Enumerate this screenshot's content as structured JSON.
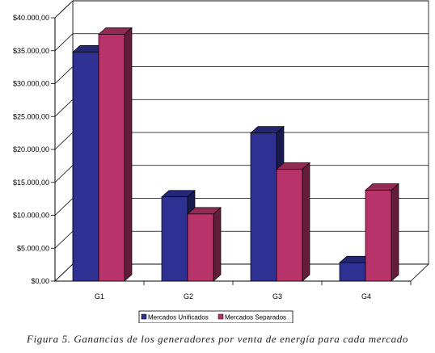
{
  "chart_data": {
    "type": "bar",
    "categories": [
      "G1",
      "G2",
      "G3",
      "G4"
    ],
    "series": [
      {
        "name": "Mercados Unificados",
        "color": "#2e3192",
        "values": [
          34800,
          12800,
          22500,
          2800
        ]
      },
      {
        "name": "Mercados Separados",
        "color": "#b8336a",
        "values": [
          37500,
          10200,
          17000,
          13800
        ]
      }
    ],
    "ylim": [
      0,
      40000
    ],
    "yticks": [
      "$0,00",
      "$5.000,00",
      "$10.000,00",
      "$15.000,00",
      "$20.000,00",
      "$25.000,00",
      "$30.000,00",
      "$35.000,00",
      "$40.000,00"
    ],
    "grid": true,
    "legend": "bottom"
  },
  "caption": "Figura 5. Ganancias de los generadores por venta de energía para cada mercado"
}
